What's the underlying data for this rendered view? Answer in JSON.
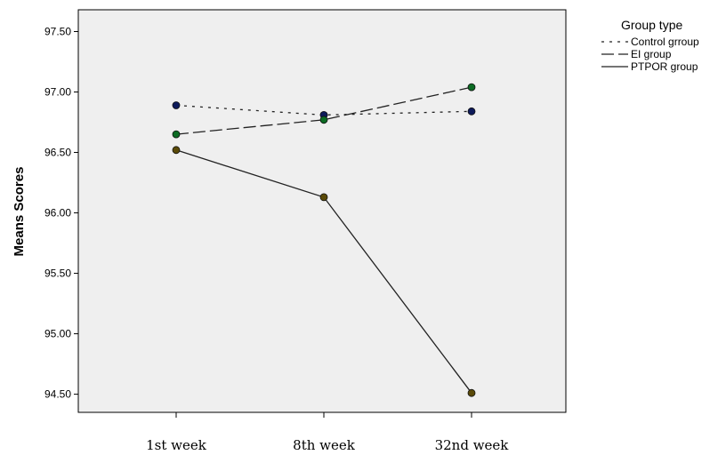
{
  "chart_data": {
    "type": "line",
    "categories": [
      "1st week",
      "8th week",
      "32nd week"
    ],
    "ylabel": "Means Scores",
    "xlabel": "",
    "ylim": [
      94.35,
      97.68
    ],
    "yticks": [
      "94.50",
      "95.00",
      "95.50",
      "96.00",
      "96.50",
      "97.00",
      "97.50"
    ],
    "ytick_values": [
      94.5,
      95.0,
      95.5,
      96.0,
      96.5,
      97.0,
      97.5
    ],
    "legend_title": "Group type",
    "legend_position": "top-right outside",
    "plot_background": "#efefef",
    "series": [
      {
        "name": "Control grroup",
        "values": [
          96.89,
          96.81,
          96.84
        ],
        "line_style": "dotted",
        "marker_color": "#0d1a5a"
      },
      {
        "name": "EI group",
        "values": [
          96.65,
          96.77,
          97.04
        ],
        "line_style": "dashed",
        "marker_color": "#0c6b23"
      },
      {
        "name": "PTPOR group",
        "values": [
          96.52,
          96.13,
          94.51
        ],
        "line_style": "solid",
        "marker_color": "#5a4a08"
      }
    ]
  }
}
